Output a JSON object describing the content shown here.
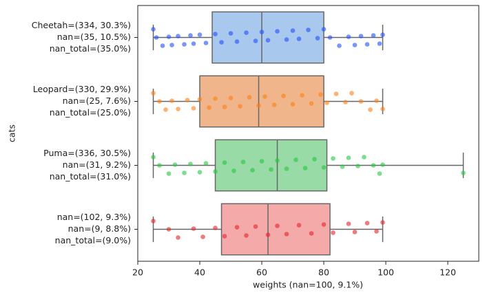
{
  "chart_data": {
    "type": "box",
    "x_label": "weights (nan=100, 9.1%)",
    "y_label": "cats",
    "categories": [
      [
        "Cheetah=(334, 30.3%)",
        "nan=(35, 10.5%)",
        "nan_total=(35.0%)"
      ],
      [
        "Leopard=(330, 29.9%)",
        "nan=(25, 7.6%)",
        "nan_total=(25.0%)"
      ],
      [
        "Puma=(336, 30.5%)",
        "nan=(31, 9.2%)",
        "nan_total=(31.0%)"
      ],
      [
        "nan=(102, 9.3%)",
        "nan=(9, 8.8%)",
        "nan_total=(9.0%)"
      ]
    ],
    "boxes": [
      {
        "whislo": 25,
        "q1": 44,
        "med": 60,
        "q3": 80,
        "whishi": 99
      },
      {
        "whislo": 25,
        "q1": 40,
        "med": 59,
        "q3": 80,
        "whishi": 99
      },
      {
        "whislo": 25,
        "q1": 45,
        "med": 65,
        "q3": 81,
        "whishi": 125
      },
      {
        "whislo": 25,
        "q1": 47,
        "med": 62,
        "q3": 82,
        "whishi": 99
      }
    ],
    "points": [
      [
        25,
        26,
        28,
        30,
        31,
        33,
        35,
        37,
        38,
        40,
        42,
        45,
        47,
        50,
        52,
        55,
        58,
        60,
        62,
        65,
        68,
        70,
        72,
        75,
        78,
        80,
        82,
        85,
        88,
        90,
        92,
        94,
        96,
        98,
        99
      ],
      [
        25,
        27,
        29,
        31,
        33,
        36,
        38,
        40,
        43,
        45,
        48,
        50,
        53,
        56,
        59,
        61,
        64,
        67,
        70,
        73,
        76,
        79,
        81,
        84,
        87,
        89,
        92,
        95,
        97,
        99
      ],
      [
        25,
        27,
        30,
        32,
        35,
        37,
        40,
        42,
        45,
        48,
        51,
        54,
        57,
        60,
        63,
        65,
        68,
        71,
        74,
        77,
        80,
        83,
        86,
        88,
        91,
        93,
        96,
        98,
        99,
        125
      ],
      [
        25,
        30,
        33,
        38,
        41,
        45,
        48,
        52,
        55,
        58,
        62,
        65,
        68,
        72,
        76,
        80,
        83,
        88,
        90,
        94,
        97,
        99
      ]
    ],
    "box_colors": [
      "#a8c8ee",
      "#f1b58c",
      "#98dba6",
      "#f3aaa8"
    ],
    "point_colors": [
      "#1f4fff",
      "#ff7f0e",
      "#22c83c",
      "#e8222a"
    ],
    "xlim": [
      20,
      130
    ],
    "xticks": [
      20,
      40,
      60,
      80,
      100,
      120
    ]
  }
}
